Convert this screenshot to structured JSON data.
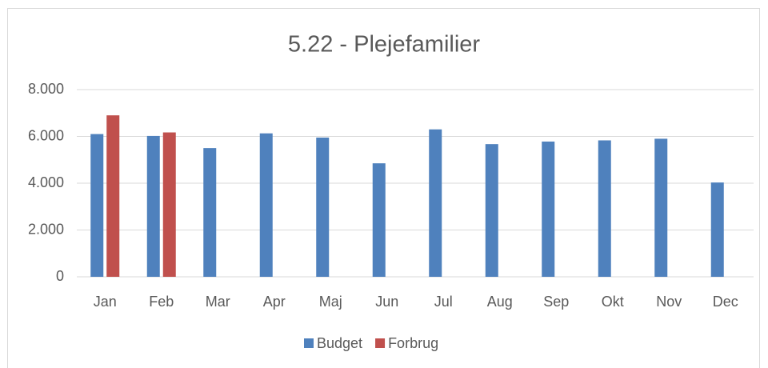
{
  "chart_data": {
    "type": "bar",
    "title": "5.22 - Plejefamilier",
    "categories": [
      "Jan",
      "Feb",
      "Mar",
      "Apr",
      "Maj",
      "Jun",
      "Jul",
      "Aug",
      "Sep",
      "Okt",
      "Nov",
      "Dec"
    ],
    "series": [
      {
        "name": "Budget",
        "color": "#4f81bd",
        "values": [
          6100,
          6020,
          5500,
          6130,
          5950,
          4850,
          6300,
          5670,
          5780,
          5830,
          5900,
          4030
        ]
      },
      {
        "name": "Forbrug",
        "color": "#c0504d",
        "values": [
          6900,
          6170,
          null,
          null,
          null,
          null,
          null,
          null,
          null,
          null,
          null,
          null
        ]
      }
    ],
    "ylim": [
      0,
      8000
    ],
    "yticks": [
      0,
      {
        "value": 2000,
        "label": "2.000"
      },
      {
        "value": 4000,
        "label": "4.000"
      },
      {
        "value": 6000,
        "label": "6.000"
      },
      {
        "value": 8000,
        "label": "8.000"
      }
    ],
    "grid": true,
    "legend": "bottom"
  }
}
